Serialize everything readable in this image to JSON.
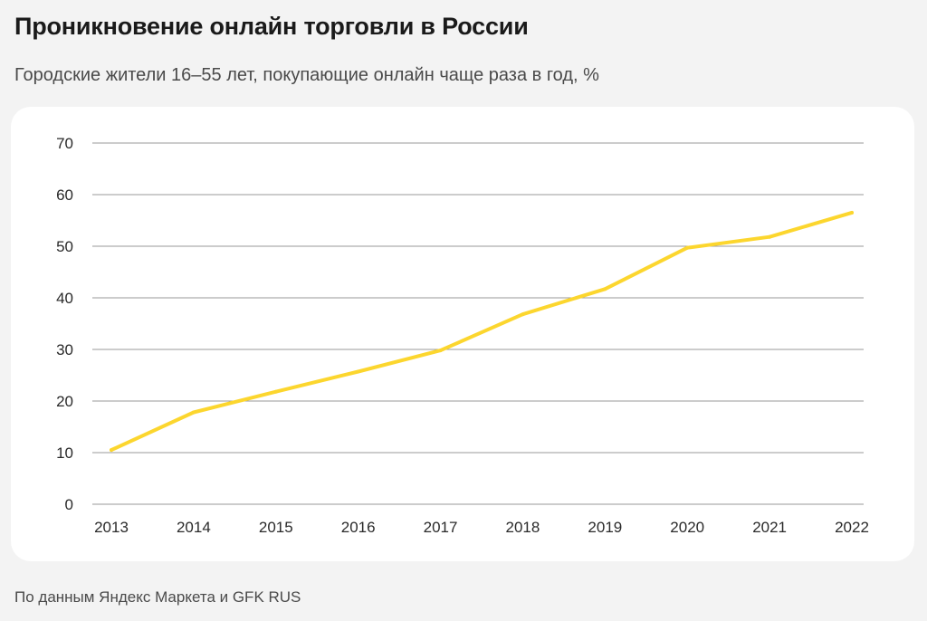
{
  "header": {
    "title": "Проникновение онлайн торговли в России",
    "subtitle": "Городские жители 16–55 лет, покупающие онлайн чаще раза в год, %"
  },
  "footer": {
    "source": "По данным Яндекс Маркета и GFK RUS"
  },
  "colors": {
    "line": "#fcd62e",
    "grid": "#9a9a9a",
    "card": "#ffffff",
    "background": "#f3f3f3"
  },
  "chart_data": {
    "type": "line",
    "categories": [
      "2013",
      "2014",
      "2015",
      "2016",
      "2017",
      "2018",
      "2019",
      "2020",
      "2021",
      "2022"
    ],
    "series": [
      {
        "values": [
          10.5,
          17.8,
          21.8,
          25.7,
          29.8,
          36.8,
          41.7,
          49.7,
          51.8,
          56.5
        ]
      }
    ],
    "yticks": [
      0,
      10,
      20,
      30,
      40,
      50,
      60,
      70
    ],
    "ylim": [
      0,
      70
    ],
    "grid": true,
    "legend": "none"
  }
}
